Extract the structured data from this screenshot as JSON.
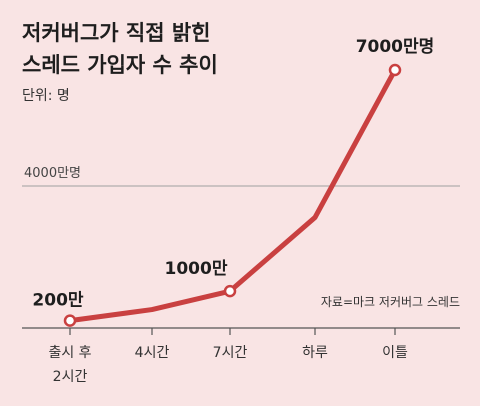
{
  "title": [
    "저커버그가 직접 밝힌",
    "스레드 가입자 수 추이"
  ],
  "unit_label": "단위: 명",
  "reference_label": "4000만명",
  "source": "자료=마크 저커버그 스레드",
  "colors": {
    "line": "#c94040",
    "background": "#f9e4e4",
    "axis": "#555555",
    "reference": "#a0a0a0"
  },
  "chart_data": {
    "type": "line",
    "categories": [
      "출시 후 2시간",
      "4시간",
      "7시간",
      "하루",
      "이틀"
    ],
    "category_lines": [
      [
        "출시 후",
        "2시간"
      ],
      [
        "4시간"
      ],
      [
        "7시간"
      ],
      [
        "하루"
      ],
      [
        "이틀"
      ]
    ],
    "x": [
      2,
      4,
      7,
      24,
      48
    ],
    "values": [
      200,
      500,
      1000,
      3000,
      7000
    ],
    "value_unit": "만명",
    "reference_value": 4000,
    "ylim": [
      0,
      7000
    ],
    "data_labels": [
      {
        "index": 0,
        "text": "200만"
      },
      {
        "index": 2,
        "text": "1000만"
      },
      {
        "index": 4,
        "text": "7000만명"
      }
    ],
    "markers_at": [
      0,
      2,
      4
    ],
    "grid": false,
    "legend": "none"
  }
}
